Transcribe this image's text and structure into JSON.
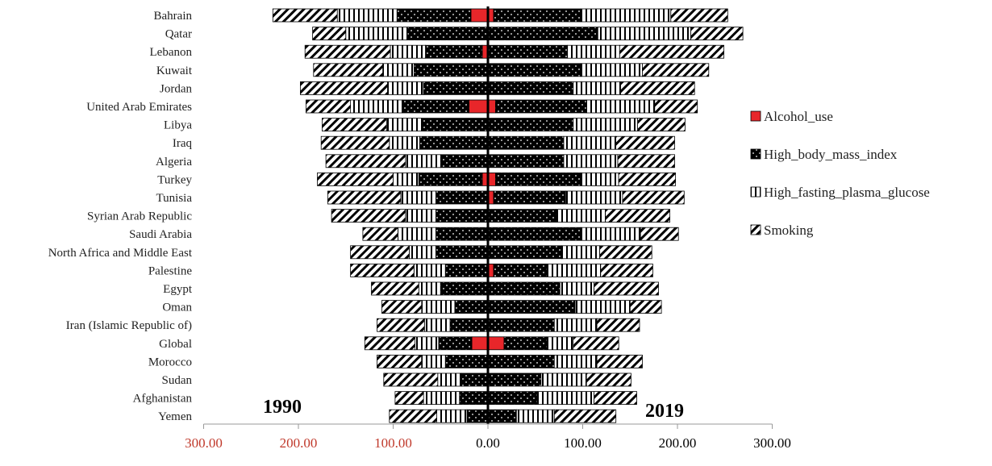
{
  "chart_data": {
    "type": "bar",
    "orientation": "horizontal",
    "layout": "back-to-back stacked",
    "periods": [
      "1990",
      "2019"
    ],
    "categories": [
      "Bahrain",
      "Qatar",
      "Lebanon",
      "Kuwait",
      "Jordan",
      "United Arab Emirates",
      "Libya",
      "Iraq",
      "Algeria",
      "Turkey",
      "Tunisia",
      "Syrian Arab Republic",
      "Saudi Arabia",
      "North Africa and Middle East",
      "Palestine",
      "Egypt",
      "Oman",
      "Iran (Islamic Republic of)",
      "Global",
      "Morocco",
      "Sudan",
      "Afghanistan",
      "Yemen"
    ],
    "series": [
      {
        "name": "Alcohol_use",
        "color": "#e8262a",
        "pattern": "solid",
        "values_1990": [
          18,
          0,
          6,
          0,
          0,
          20,
          0,
          0,
          0,
          6,
          0,
          0,
          0,
          0,
          0,
          0,
          0,
          0,
          17,
          0,
          0,
          0,
          0
        ],
        "values_2019": [
          6,
          0,
          0,
          0,
          0,
          8,
          0,
          0,
          0,
          8,
          6,
          0,
          0,
          0,
          6,
          0,
          0,
          0,
          17,
          0,
          0,
          0,
          0
        ]
      },
      {
        "name": "High_body_mass_index",
        "color": "#000000",
        "pattern": "black-dots",
        "values_1990": [
          78,
          85,
          60,
          78,
          68,
          70,
          70,
          72,
          50,
          67,
          55,
          55,
          55,
          55,
          45,
          50,
          35,
          40,
          35,
          45,
          28,
          30,
          22
        ],
        "values_2019": [
          92,
          116,
          84,
          98,
          90,
          96,
          90,
          80,
          80,
          90,
          76,
          72,
          98,
          78,
          56,
          76,
          92,
          70,
          45,
          70,
          56,
          52,
          30
        ]
      },
      {
        "name": "High_fasting_plasma_glucose",
        "color": "#ffffff",
        "pattern": "vertical-lines",
        "values_1990": [
          63,
          65,
          37,
          33,
          38,
          55,
          37,
          32,
          37,
          27,
          37,
          32,
          40,
          28,
          33,
          23,
          35,
          27,
          25,
          25,
          25,
          38,
          32
        ],
        "values_2019": [
          95,
          98,
          55,
          65,
          50,
          72,
          68,
          55,
          57,
          40,
          60,
          52,
          63,
          40,
          57,
          36,
          58,
          45,
          28,
          45,
          48,
          60,
          40
        ]
      },
      {
        "name": "Smoking",
        "color": "#ffffff",
        "pattern": "diagonal-hatch",
        "values_1990": [
          68,
          35,
          90,
          73,
          92,
          47,
          68,
          72,
          84,
          80,
          77,
          78,
          37,
          62,
          67,
          50,
          42,
          50,
          53,
          47,
          57,
          30,
          50
        ],
        "values_2019": [
          60,
          55,
          110,
          70,
          78,
          45,
          50,
          62,
          60,
          60,
          65,
          68,
          40,
          55,
          55,
          68,
          33,
          45,
          48,
          48,
          47,
          45,
          65
        ]
      }
    ],
    "xlim": [
      -300,
      300
    ],
    "x_ticks": [
      "300.00",
      "200.00",
      "100.00",
      "0.00",
      "100.00",
      "200.00",
      "300.00"
    ],
    "x_tick_values": [
      -300,
      -200,
      -100,
      0,
      100,
      200,
      300
    ],
    "x_tick_colors": [
      "#c0392b",
      "#c0392b",
      "#c0392b",
      "#000000",
      "#000000",
      "#000000",
      "#000000"
    ],
    "legend_position": "right",
    "title": "",
    "xlabel": "",
    "ylabel": ""
  }
}
